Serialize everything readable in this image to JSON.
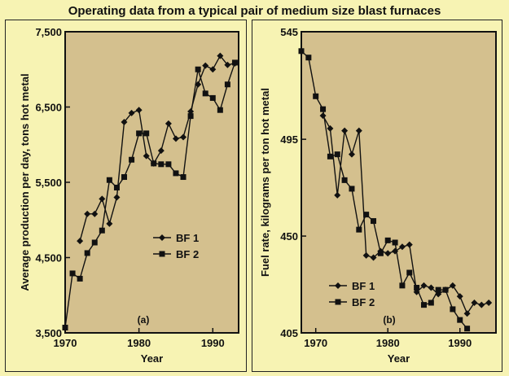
{
  "title": "Operating data from a typical pair of medium size blast furnaces",
  "chart_data": [
    {
      "type": "line",
      "panel_label": "(a)",
      "xlabel": "Year",
      "ylabel": "Average production per day, tons hot metal",
      "xlim": [
        1970,
        1993.5
      ],
      "ylim": [
        3500,
        7500
      ],
      "xticks": [
        1970,
        1980,
        1990
      ],
      "xtick_labels": [
        "1970",
        "1980",
        "1990"
      ],
      "yticks": [
        3500,
        4500,
        5500,
        6500,
        7500
      ],
      "ytick_labels": [
        "3,500",
        "4,500",
        "5,500",
        "6,500",
        "7,500"
      ],
      "legend": "center",
      "plot_bg": "#d4c08e",
      "series": [
        {
          "name": "BF 1",
          "marker": "diamond",
          "points": [
            [
              1972,
              4720
            ],
            [
              1973,
              5080
            ],
            [
              1974,
              5080
            ],
            [
              1975,
              5280
            ],
            [
              1976,
              4950
            ],
            [
              1977,
              5300
            ],
            [
              1978,
              6300
            ],
            [
              1979,
              6420
            ],
            [
              1980,
              6460
            ],
            [
              1981,
              5850
            ],
            [
              1982,
              5750
            ],
            [
              1983,
              5920
            ],
            [
              1984,
              6280
            ],
            [
              1985,
              6080
            ],
            [
              1986,
              6100
            ],
            [
              1987,
              6440
            ],
            [
              1988,
              6800
            ],
            [
              1989,
              7050
            ],
            [
              1990,
              7000
            ],
            [
              1991,
              7180
            ],
            [
              1992,
              7060
            ],
            [
              1993,
              7080
            ]
          ]
        },
        {
          "name": "BF 2",
          "marker": "square",
          "points": [
            [
              1970,
              3570
            ],
            [
              1971,
              4290
            ],
            [
              1972,
              4220
            ],
            [
              1973,
              4560
            ],
            [
              1974,
              4700
            ],
            [
              1975,
              4860
            ],
            [
              1976,
              5530
            ],
            [
              1977,
              5430
            ],
            [
              1978,
              5570
            ],
            [
              1979,
              5800
            ],
            [
              1980,
              6150
            ],
            [
              1981,
              6150
            ],
            [
              1982,
              5750
            ],
            [
              1983,
              5740
            ],
            [
              1984,
              5740
            ],
            [
              1985,
              5620
            ],
            [
              1986,
              5570
            ],
            [
              1987,
              6380
            ],
            [
              1988,
              7000
            ],
            [
              1989,
              6680
            ],
            [
              1990,
              6620
            ],
            [
              1991,
              6460
            ],
            [
              1992,
              6800
            ],
            [
              1993,
              7090
            ]
          ]
        }
      ]
    },
    {
      "type": "line",
      "panel_label": "(b)",
      "xlabel": "Year",
      "ylabel": "Fuel rate, kilograms per ton hot metal",
      "xlim": [
        1968,
        1995
      ],
      "ylim": [
        405,
        545
      ],
      "xticks": [
        1970,
        1980,
        1990
      ],
      "xtick_labels": [
        "1970",
        "1980",
        "1990"
      ],
      "yticks": [
        405,
        450,
        495,
        545
      ],
      "ytick_labels": [
        "405",
        "450",
        "495",
        "545"
      ],
      "legend": "lower-left",
      "plot_bg": "#d4c08e",
      "series": [
        {
          "name": "BF 1",
          "marker": "diamond",
          "points": [
            [
              1971,
              506
            ],
            [
              1972,
              500
            ],
            [
              1973,
              469
            ],
            [
              1974,
              499
            ],
            [
              1975,
              488
            ],
            [
              1976,
              499
            ],
            [
              1977,
              441
            ],
            [
              1978,
              440
            ],
            [
              1979,
              443
            ],
            [
              1980,
              442
            ],
            [
              1981,
              443
            ],
            [
              1982,
              445
            ],
            [
              1983,
              446
            ],
            [
              1984,
              424
            ],
            [
              1985,
              427
            ],
            [
              1986,
              426
            ],
            [
              1987,
              423
            ],
            [
              1988,
              425
            ],
            [
              1989,
              427
            ],
            [
              1990,
              422
            ],
            [
              1991,
              414
            ],
            [
              1992,
              419
            ],
            [
              1993,
              418
            ],
            [
              1994,
              419
            ]
          ]
        },
        {
          "name": "BF 2",
          "marker": "square",
          "points": [
            [
              1968,
              536
            ],
            [
              1969,
              533
            ],
            [
              1970,
              515
            ],
            [
              1971,
              509
            ],
            [
              1972,
              487
            ],
            [
              1973,
              488
            ],
            [
              1974,
              476
            ],
            [
              1975,
              472
            ],
            [
              1976,
              453
            ],
            [
              1977,
              460
            ],
            [
              1978,
              457
            ],
            [
              1979,
              442
            ],
            [
              1980,
              448
            ],
            [
              1981,
              447
            ],
            [
              1982,
              427
            ],
            [
              1983,
              433
            ],
            [
              1984,
              426
            ],
            [
              1985,
              418
            ],
            [
              1986,
              419
            ],
            [
              1987,
              425
            ],
            [
              1988,
              425
            ],
            [
              1989,
              416
            ],
            [
              1990,
              411
            ],
            [
              1991,
              407
            ]
          ]
        }
      ]
    }
  ]
}
